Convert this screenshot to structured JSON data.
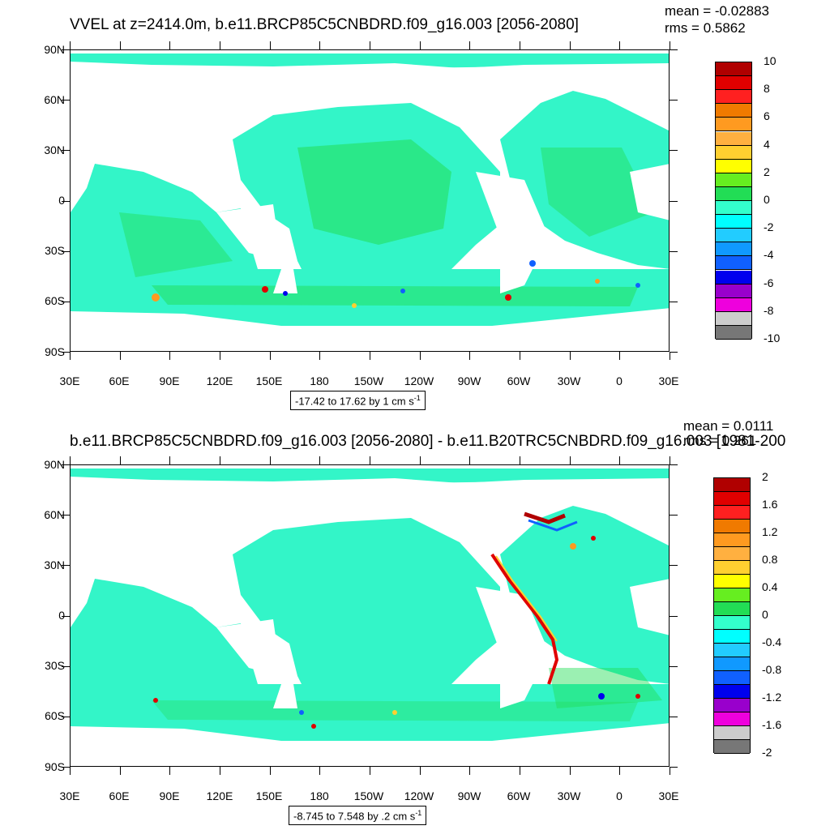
{
  "panels": [
    {
      "id": "top",
      "title": "VVEL at z=2414.0m, b.e11.BRCP85C5CNBDRD.f09_g16.003 [2056-2080]",
      "mean_text": "mean = -0.02883",
      "rms_text": "rms = 0.5862",
      "range_line": "-17.42 to 17.62 by 1 cm s",
      "range_sup": "-1",
      "colorbar_labels": [
        "10",
        "8",
        "6",
        "4",
        "2",
        "0",
        "-2",
        "-4",
        "-6",
        "-8",
        "-10"
      ],
      "colorbar_colors": [
        "#b00000",
        "#e00000",
        "#ff2020",
        "#f07a00",
        "#ff9a20",
        "#ffb040",
        "#ffd030",
        "#ffff00",
        "#66ee20",
        "#22dd55",
        "#33ffcc",
        "#00ffff",
        "#22ccff",
        "#1099ff",
        "#1060ff",
        "#0000ee",
        "#9900cc",
        "#ee00dd",
        "#cccccc",
        "#777777"
      ]
    },
    {
      "id": "bottom",
      "title": "b.e11.BRCP85C5CNBDRD.f09_g16.003 [2056-2080] - b.e11.B20TRC5CNBDRD.f09_g16.003 [1981-200",
      "mean_text": "mean = 0.0111",
      "rms_text": "rms = 0.261",
      "range_line": "-8.745 to 7.548 by .2 cm s",
      "range_sup": "-1",
      "colorbar_labels": [
        "2",
        "1.6",
        "1.2",
        "0.8",
        "0.4",
        "0",
        "-0.4",
        "-0.8",
        "-1.2",
        "-1.6",
        "-2"
      ],
      "colorbar_colors": [
        "#b00000",
        "#e00000",
        "#ff2020",
        "#f07a00",
        "#ff9a20",
        "#ffb040",
        "#ffd030",
        "#ffff00",
        "#66ee20",
        "#22dd55",
        "#33ffcc",
        "#00ffff",
        "#22ccff",
        "#1099ff",
        "#1060ff",
        "#0000ee",
        "#9900cc",
        "#ee00dd",
        "#cccccc",
        "#777777"
      ]
    }
  ],
  "lat_labels": [
    "90N",
    "60N",
    "30N",
    "0",
    "30S",
    "60S",
    "90S"
  ],
  "lon_labels": [
    "30E",
    "60E",
    "90E",
    "120E",
    "150E",
    "180",
    "150W",
    "120W",
    "90W",
    "60W",
    "30W",
    "0",
    "30E"
  ],
  "colors": {
    "ocean_base": "#33f5c8",
    "ocean_green": "#22dd55",
    "land": "#ffffff"
  }
}
